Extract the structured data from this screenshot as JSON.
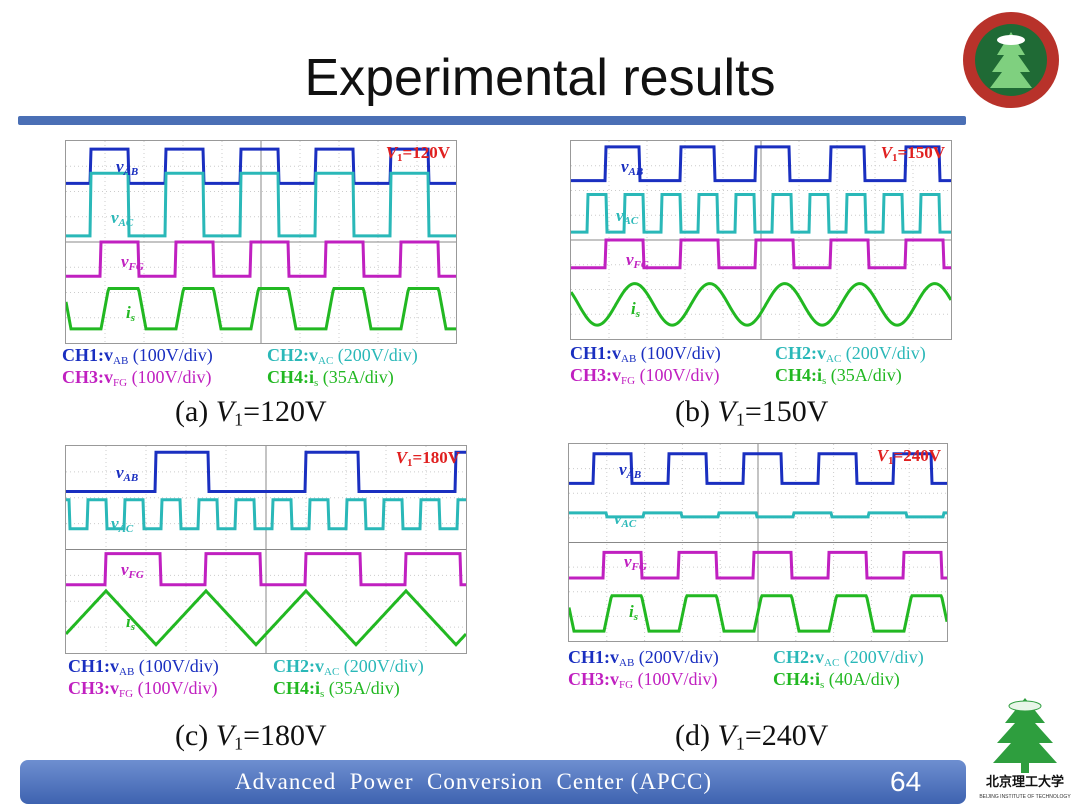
{
  "slide": {
    "title": "Experimental results",
    "page_number": "64",
    "footer": "Advanced  Power  Conversion  Center (APCC)"
  },
  "logos": {
    "top_right": "BEIJING INSTITUTE OF TECHNOLOGY",
    "bottom_right_cn": "北京理工大学",
    "bottom_right_en": "BEIJING INSTITUTE OF TECHNOLOGY"
  },
  "colors": {
    "ch1": "#1a2fc0",
    "ch2": "#2ab8b8",
    "ch3": "#c020c0",
    "ch4": "#22b822",
    "accent": "#4a6fb5",
    "voltage_tag": "#e02020"
  },
  "waveform_labels": {
    "ch1": "v",
    "ch1_sub": "AB",
    "ch2": "v",
    "ch2_sub": "AC",
    "ch3": "v",
    "ch3_sub": "FG",
    "ch4": "i",
    "ch4_sub": "s"
  },
  "panels": [
    {
      "id": "a",
      "tag": "V",
      "tag_sub": "1",
      "tag_val": "=120V",
      "caption_prefix": "(a) ",
      "caption_var": "V",
      "caption_sub": "1",
      "caption_val": "=120V",
      "ch1": "CH1:v",
      "ch1_sub": "AB",
      "ch1_scale": "(100V/div)",
      "ch2": "CH2:v",
      "ch2_sub": "AC",
      "ch2_scale": "(200V/div)",
      "ch3": "CH3:v",
      "ch3_sub": "FG",
      "ch3_scale": "(100V/div)",
      "ch4": "CH4:i",
      "ch4_sub": "s",
      "ch4_scale": "(35A/div)"
    },
    {
      "id": "b",
      "tag": "V",
      "tag_sub": "1",
      "tag_val": "=150V",
      "caption_prefix": "(b) ",
      "caption_var": "V",
      "caption_sub": "1",
      "caption_val": "=150V",
      "ch1": "CH1:v",
      "ch1_sub": "AB",
      "ch1_scale": "(100V/div)",
      "ch2": "CH2:v",
      "ch2_sub": "AC",
      "ch2_scale": "(200V/div)",
      "ch3": "CH3:v",
      "ch3_sub": "FG",
      "ch3_scale": "(100V/div)",
      "ch4": "CH4:i",
      "ch4_sub": "s",
      "ch4_scale": "(35A/div)"
    },
    {
      "id": "c",
      "tag": "V",
      "tag_sub": "1",
      "tag_val": "=180V",
      "caption_prefix": "(c) ",
      "caption_var": "V",
      "caption_sub": "1",
      "caption_val": "=180V",
      "ch1": "CH1:v",
      "ch1_sub": "AB",
      "ch1_scale": "(100V/div)",
      "ch2": "CH2:v",
      "ch2_sub": "AC",
      "ch2_scale": "(200V/div)",
      "ch3": "CH3:v",
      "ch3_sub": "FG",
      "ch3_scale": "(100V/div)",
      "ch4": "CH4:i",
      "ch4_sub": "s",
      "ch4_scale": "(35A/div)"
    },
    {
      "id": "d",
      "tag": "V",
      "tag_sub": "1",
      "tag_val": "=240V",
      "caption_prefix": "(d) ",
      "caption_var": "V",
      "caption_sub": "1",
      "caption_val": "=240V",
      "ch1": "CH1:v",
      "ch1_sub": "AB",
      "ch1_scale": "(200V/div)",
      "ch2": "CH2:v",
      "ch2_sub": "AC",
      "ch2_scale": "(200V/div)",
      "ch3": "CH3:v",
      "ch3_sub": "FG",
      "ch3_scale": "(100V/div)",
      "ch4": "CH4:i",
      "ch4_sub": "s",
      "ch4_scale": "(40A/div)"
    }
  ]
}
